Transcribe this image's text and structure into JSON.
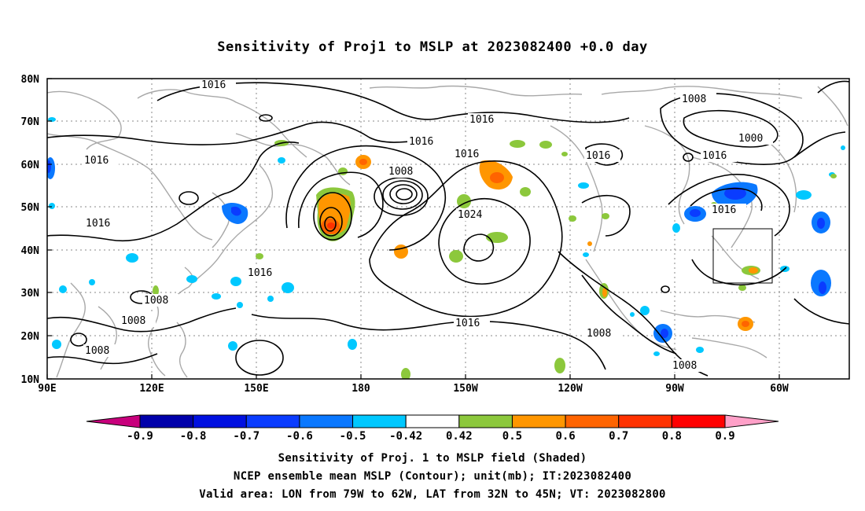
{
  "title": "Sensitivity of Proj1 to MSLP at 2023082400 +0.0 day",
  "lat_labels": [
    "80N",
    "70N",
    "60N",
    "50N",
    "40N",
    "30N",
    "20N",
    "10N"
  ],
  "lon_labels": [
    "90E",
    "120E",
    "150E",
    "180",
    "150W",
    "120W",
    "90W",
    "60W"
  ],
  "contour_labels": [
    "1016",
    "1016",
    "1016",
    "1016",
    "1008",
    "1016",
    "1000",
    "1016",
    "1008",
    "1016",
    "1016",
    "1024",
    "1016",
    "1016",
    "1008",
    "1008",
    "1008",
    "1008",
    "1008",
    "1016"
  ],
  "colorbar": {
    "labels": [
      "-0.9",
      "-0.8",
      "-0.7",
      "-0.6",
      "-0.5",
      "-0.42",
      "0.42",
      "0.5",
      "0.6",
      "0.7",
      "0.8",
      "0.9"
    ],
    "colors": [
      "#c8007c",
      "#0000aa",
      "#0010e0",
      "#0a3cff",
      "#0a78ff",
      "#00c8ff",
      "#ffffff",
      "#8cc83c",
      "#ff9600",
      "#ff6400",
      "#ff3200",
      "#ff0000",
      "#ffa0c8"
    ]
  },
  "footer": {
    "line1": "Sensitivity of Proj. 1 to MSLP field (Shaded)",
    "line2": "NCEP ensemble mean MSLP (Contour); unit(mb); IT:2023082400",
    "line3": "Valid area: LON from 79W to 62W, LAT from 32N to 45N; VT: 2023082800"
  }
}
